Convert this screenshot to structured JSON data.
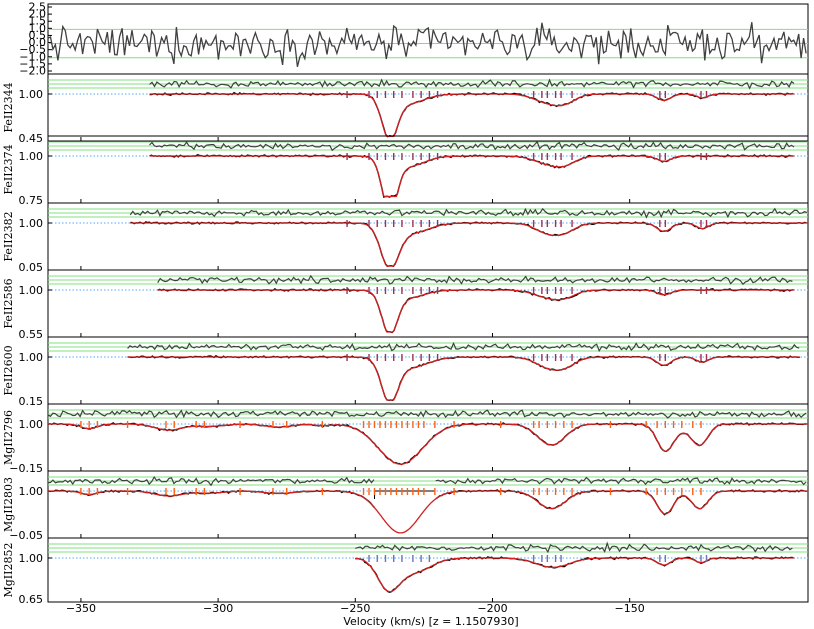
{
  "chart_data": {
    "type": "line",
    "title": "",
    "xlabel": "Velocity (km/s) [z = 1.1507930]",
    "xlim": [
      -362,
      -85
    ],
    "xticks": [
      -350,
      -300,
      -250,
      -200,
      -150
    ],
    "xtick_labels": [
      "−350",
      "−300",
      "−250",
      "−200",
      "−150"
    ],
    "colors": {
      "data": "#000000",
      "model": "#d42020",
      "residual": "#404040",
      "green_lines": "#80e080",
      "continuum": "#4aa8ff",
      "comp_tick_fe": "#a03050",
      "comp_tick_mg": "#ff6010",
      "comp_tick_mg2852": "#7070c0"
    },
    "residual_panel": {
      "ytick_labels": [
        "2.5",
        "2.0",
        "1.5",
        "1.0",
        "0.5",
        "0.0",
        "−0.5",
        "−1.0",
        "−1.5",
        "−2.0"
      ],
      "yrange": [
        -2.0,
        2.5
      ],
      "green_levels": [
        -1.0,
        0.0,
        1.0
      ]
    },
    "panels": [
      {
        "ion": "FeII2344",
        "ymin_label": "0.45",
        "ymid_label": "1.00",
        "ymin": 0.45,
        "vrange": [
          -325,
          -90
        ],
        "components": [
          -253,
          -245,
          -242,
          -239,
          -236,
          -233,
          -229,
          -226,
          -223,
          -220,
          -185,
          -182,
          -180,
          -177,
          -175,
          -171,
          -139,
          -137,
          -124,
          -122
        ],
        "features": [
          {
            "v": -237.5,
            "depth": 0.52,
            "width": 2.8
          },
          {
            "v": -231.0,
            "depth": 0.12,
            "width": 6.0
          },
          {
            "v": -180.0,
            "depth": 0.1,
            "width": 5.0
          },
          {
            "v": -173.5,
            "depth": 0.09,
            "width": 4.0
          },
          {
            "v": -137.5,
            "depth": 0.08,
            "width": 2.5
          },
          {
            "v": -123.5,
            "depth": 0.05,
            "width": 2.0
          }
        ]
      },
      {
        "ion": "FeII2374",
        "ymin_label": "0.75",
        "ymid_label": "1.00",
        "ymin": 0.75,
        "vrange": [
          -325,
          -90
        ],
        "components": [
          -253,
          -245,
          -242,
          -239,
          -236,
          -233,
          -229,
          -226,
          -223,
          -220,
          -185,
          -182,
          -180,
          -177,
          -175,
          -171,
          -139,
          -137,
          -124,
          -122
        ],
        "features": [
          {
            "v": -237.5,
            "depth": 0.3,
            "width": 2.6
          },
          {
            "v": -231.0,
            "depth": 0.06,
            "width": 6.0
          },
          {
            "v": -180.0,
            "depth": 0.04,
            "width": 5.0
          },
          {
            "v": -173.5,
            "depth": 0.04,
            "width": 4.0
          },
          {
            "v": -137.5,
            "depth": 0.03,
            "width": 2.5
          }
        ]
      },
      {
        "ion": "FeII2382",
        "ymin_label": "0.05",
        "ymid_label": "1.00",
        "ymin": 0.05,
        "vrange": [
          -332,
          -85
        ],
        "components": [
          -253,
          -245,
          -242,
          -239,
          -236,
          -233,
          -229,
          -226,
          -223,
          -220,
          -185,
          -182,
          -180,
          -177,
          -175,
          -171,
          -139,
          -137,
          -124,
          -122
        ],
        "features": [
          {
            "v": -237.5,
            "depth": 0.9,
            "width": 3.2
          },
          {
            "v": -230.0,
            "depth": 0.22,
            "width": 6.5
          },
          {
            "v": -180.0,
            "depth": 0.2,
            "width": 4.5
          },
          {
            "v": -173.5,
            "depth": 0.16,
            "width": 4.0
          },
          {
            "v": -137.5,
            "depth": 0.18,
            "width": 2.6
          },
          {
            "v": -123.5,
            "depth": 0.12,
            "width": 2.2
          }
        ]
      },
      {
        "ion": "FeII2586",
        "ymin_label": "0.55",
        "ymid_label": "1.00",
        "ymin": 0.55,
        "vrange": [
          -322,
          -90
        ],
        "components": [
          -253,
          -245,
          -242,
          -239,
          -236,
          -233,
          -229,
          -226,
          -223,
          -220,
          -185,
          -182,
          -180,
          -177,
          -175,
          -171,
          -139,
          -137,
          -124,
          -122
        ],
        "features": [
          {
            "v": -237.5,
            "depth": 0.42,
            "width": 2.8
          },
          {
            "v": -231.0,
            "depth": 0.08,
            "width": 6.0
          },
          {
            "v": -180.0,
            "depth": 0.07,
            "width": 5.0
          },
          {
            "v": -173.5,
            "depth": 0.06,
            "width": 4.0
          },
          {
            "v": -137.5,
            "depth": 0.05,
            "width": 2.5
          }
        ]
      },
      {
        "ion": "FeII2600",
        "ymin_label": "0.15",
        "ymid_label": "1.00",
        "ymin": 0.15,
        "vrange": [
          -333,
          -88
        ],
        "components": [
          -253,
          -245,
          -242,
          -239,
          -236,
          -233,
          -229,
          -226,
          -223,
          -220,
          -185,
          -182,
          -180,
          -177,
          -175,
          -171,
          -139,
          -137,
          -124,
          -122
        ],
        "features": [
          {
            "v": -237.5,
            "depth": 0.8,
            "width": 3.0
          },
          {
            "v": -230.0,
            "depth": 0.2,
            "width": 6.5
          },
          {
            "v": -180.0,
            "depth": 0.18,
            "width": 4.5
          },
          {
            "v": -173.5,
            "depth": 0.16,
            "width": 4.0
          },
          {
            "v": -137.5,
            "depth": 0.16,
            "width": 2.6
          },
          {
            "v": -123.5,
            "depth": 0.1,
            "width": 2.2
          }
        ]
      },
      {
        "ion": "MgII2796",
        "ymin_label": "−0.15",
        "ymid_label": "1.00",
        "ymin": -0.15,
        "vrange": [
          -362,
          -85
        ],
        "components": [
          -350,
          -347,
          -344,
          -333,
          -319,
          -316,
          -308,
          -305,
          -292,
          -280,
          -275,
          -262,
          -247,
          -245,
          -243,
          -241,
          -239,
          -237,
          -235,
          -233,
          -231,
          -229,
          -227,
          -225,
          -221,
          -214,
          -197,
          -185,
          -183,
          -180,
          -177,
          -174,
          -171,
          -157,
          -144,
          -140,
          -137,
          -134,
          -131,
          -127,
          -124
        ],
        "features": [
          {
            "v": -347.0,
            "depth": 0.12,
            "width": 3.0
          },
          {
            "v": -318.0,
            "depth": 0.16,
            "width": 5.0
          },
          {
            "v": -303.0,
            "depth": 0.06,
            "width": 5.0
          },
          {
            "v": -278.0,
            "depth": 0.08,
            "width": 5.0
          },
          {
            "v": -262.0,
            "depth": 0.04,
            "width": 3.0
          },
          {
            "v": -233.5,
            "depth": 1.05,
            "width": 8.0
          },
          {
            "v": -178.5,
            "depth": 0.55,
            "width": 5.0
          },
          {
            "v": -137.0,
            "depth": 0.7,
            "width": 3.0
          },
          {
            "v": -124.5,
            "depth": 0.55,
            "width": 3.0
          },
          {
            "v": -131.0,
            "depth": 0.1,
            "width": 3.0
          }
        ]
      },
      {
        "ion": "MgII2803",
        "ymin_label": "−0.05",
        "ymid_label": "1.00",
        "ymin": -0.05,
        "vrange": [
          -362,
          -85
        ],
        "gap": [
          -243,
          -221
        ],
        "components": [
          -350,
          -347,
          -344,
          -333,
          -319,
          -316,
          -308,
          -305,
          -292,
          -280,
          -275,
          -262,
          -247,
          -245,
          -243,
          -241,
          -239,
          -237,
          -235,
          -233,
          -231,
          -229,
          -227,
          -225,
          -221,
          -214,
          -197,
          -185,
          -183,
          -180,
          -177,
          -174,
          -171,
          -157,
          -144,
          -140,
          -137,
          -134,
          -131,
          -127,
          -124
        ],
        "features": [
          {
            "v": -347.0,
            "depth": 0.08,
            "width": 3.0
          },
          {
            "v": -318.0,
            "depth": 0.12,
            "width": 5.0
          },
          {
            "v": -303.0,
            "depth": 0.05,
            "width": 5.0
          },
          {
            "v": -278.0,
            "depth": 0.06,
            "width": 5.0
          },
          {
            "v": -233.5,
            "depth": 1.0,
            "width": 7.0
          },
          {
            "v": -178.5,
            "depth": 0.42,
            "width": 5.0
          },
          {
            "v": -137.0,
            "depth": 0.55,
            "width": 3.0
          },
          {
            "v": -124.5,
            "depth": 0.42,
            "width": 3.0
          }
        ]
      },
      {
        "ion": "MgII2852",
        "ymin_label": "0.65",
        "ymid_label": "1.00",
        "ymin": 0.65,
        "vrange": [
          -250,
          -90
        ],
        "components": [
          -245,
          -242,
          -239,
          -236,
          -233,
          -229,
          -226,
          -223,
          -185,
          -182,
          -180,
          -177,
          -175,
          -139,
          -137,
          -124,
          -122
        ],
        "features": [
          {
            "v": -238.0,
            "depth": 0.25,
            "width": 4.0
          },
          {
            "v": -228.5,
            "depth": 0.12,
            "width": 6.0
          },
          {
            "v": -178.0,
            "depth": 0.08,
            "width": 6.0
          },
          {
            "v": -137.5,
            "depth": 0.06,
            "width": 2.5
          },
          {
            "v": -124.0,
            "depth": 0.04,
            "width": 2.0
          }
        ]
      }
    ]
  }
}
